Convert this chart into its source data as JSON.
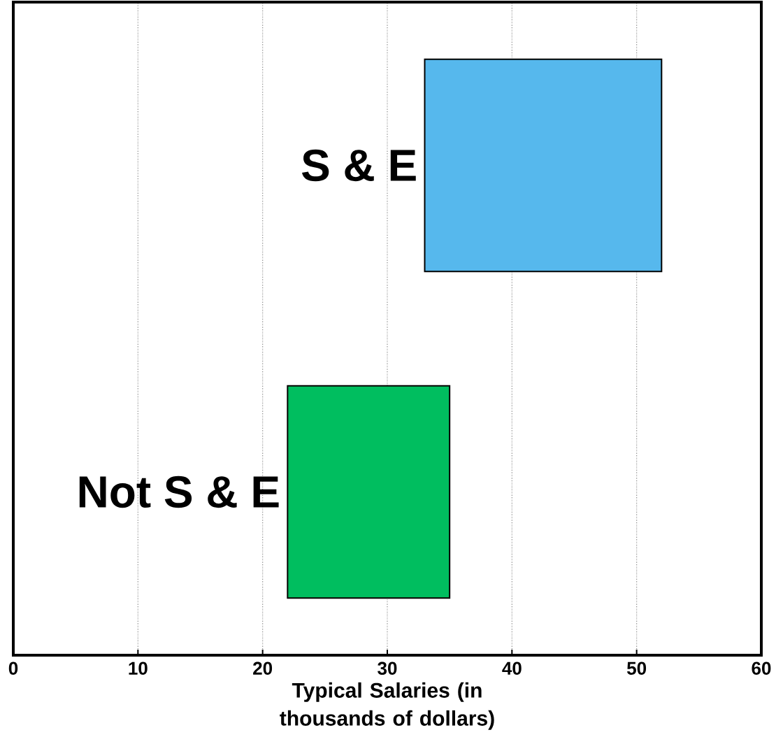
{
  "chart_data": {
    "type": "bar",
    "orientation": "horizontal",
    "categories": [
      "S & E",
      "Not S & E"
    ],
    "base": [
      33,
      22
    ],
    "values": [
      19,
      13
    ],
    "colors": [
      "#56b8ed",
      "#00be5f"
    ],
    "xlabel": "Typical Salaries (in thousands of dollars)",
    "xlim": [
      0,
      60
    ],
    "xticks": [
      0,
      10,
      20,
      30,
      40,
      50,
      60
    ],
    "grid": "x"
  }
}
